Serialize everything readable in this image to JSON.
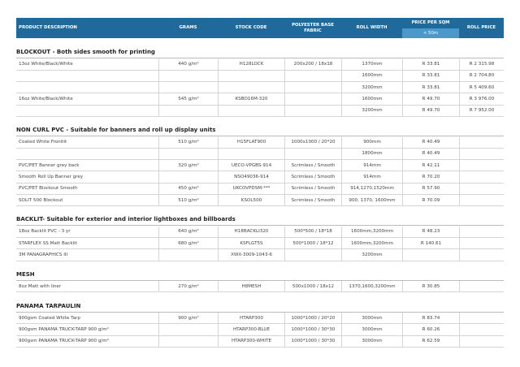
{
  "header": {
    "columns": [
      "PRODUCT DESCRIPTION",
      "GRAMS",
      "STOCK CODE",
      "POLYESTER BASE FABRIC",
      "ROLL WIDTH",
      "PRICE PER SQM",
      "ROLL PRICE"
    ],
    "subheader": "< 50m"
  },
  "sections": [
    {
      "title": "BLOCKOUT - Both sides smooth for printing",
      "rows": [
        [
          "13oz White/Black/White",
          "440 g/m²",
          "H128LOCK",
          "200x200 / 18x18",
          "1370mm",
          "R 33.81",
          "R 2 315.98"
        ],
        [
          null,
          null,
          null,
          null,
          "1600mm",
          "R 33.81",
          "R 2 704.80"
        ],
        [
          null,
          null,
          null,
          null,
          "3200mm",
          "R 33.81",
          "R 5 409.60"
        ],
        [
          "16oz White/Black/White",
          "545 g/m²",
          "KSBO16M-320",
          null,
          "1600mm",
          "R 49.70",
          "R 3 976.00"
        ],
        [
          null,
          null,
          null,
          null,
          "3200mm",
          "R 49.70",
          "R 7 952.00"
        ]
      ]
    },
    {
      "title": "NON CURL PVC - Suitable for banners and roll up display units",
      "rows": [
        [
          "Coated White Frontlit",
          "510 g/m²",
          "H15FLAT900",
          "1000x1000 / 20*20",
          "900mm",
          "R 40.49",
          null
        ],
        [
          null,
          null,
          null,
          null,
          "1800mm",
          "R 40.49",
          null
        ],
        [
          "PVC/PET Banner grey back",
          "320 g/m²",
          "UECO-VPGBS-914",
          "Scrimless / Smooth",
          "914mm",
          "R 42.11",
          null
        ],
        [
          "Smooth Roll Up Banner grey",
          null,
          "NSO49036-914",
          "Scrimless / Smooth",
          "914mm",
          "R 70.20",
          null
        ],
        [
          "PVC/PET Blockout Smooth",
          "450 g/m²",
          "UKCOVPDSM-***",
          "Scrimless / Smooth",
          "914,1270,1520mm",
          "R 57.90",
          null
        ],
        [
          "SOLIT 500 Blockout",
          "510 g/m²",
          "KSOL500",
          "Scrimless / Smooth",
          "900, 1370, 1600mm",
          "R 70.09",
          null
        ]
      ]
    },
    {
      "title": "BACKLIT- Suitable for exterior and interior lightboxes and billboards",
      "rows": [
        [
          "18oz Backlit PVC - 3 yr",
          "640 g/m²",
          "H18BACKLI320",
          "500*500 / 18*18",
          "1600mm,3200mm",
          "R 48.23",
          null
        ],
        [
          "STARFLEX SS Matt Backlit",
          "680 g/m²",
          "KSFLGT5S",
          "500*1000 / 18*12",
          "1600mm,3200mm",
          "R 140.61",
          null
        ],
        [
          "3M PANAGRAPHICS III",
          null,
          "XWX-3009-1043-6",
          null,
          "3200mm",
          null,
          null
        ]
      ]
    },
    {
      "title": "MESH",
      "rows": [
        [
          "8oz Matt with liner",
          "270 g/m²",
          "H8MESH",
          "500x1000 / 18x12",
          "1370,1600,3200mm",
          "R 30.85",
          null
        ]
      ]
    },
    {
      "title": "PANAMA TARPAULIN",
      "rows": [
        [
          "900gsm Coated White Tarp",
          "900 g/m²",
          "HTARP300",
          "1000*1000 / 20*20",
          "3000mm",
          "R 83.74",
          null
        ],
        [
          "900gsm PANAMA TRUCK-TARP 900 g/m²",
          null,
          "HTARP300-BLUE",
          "1000*1000 / 30*30",
          "3000mm",
          "R 60.26",
          null
        ],
        [
          "900gsm PANAMA TRUCK-TARP 900 g/m²",
          null,
          "HTARP300-WHITE",
          "1000*1000 / 30*30",
          "3000mm",
          "R 62.59",
          null
        ]
      ]
    }
  ]
}
